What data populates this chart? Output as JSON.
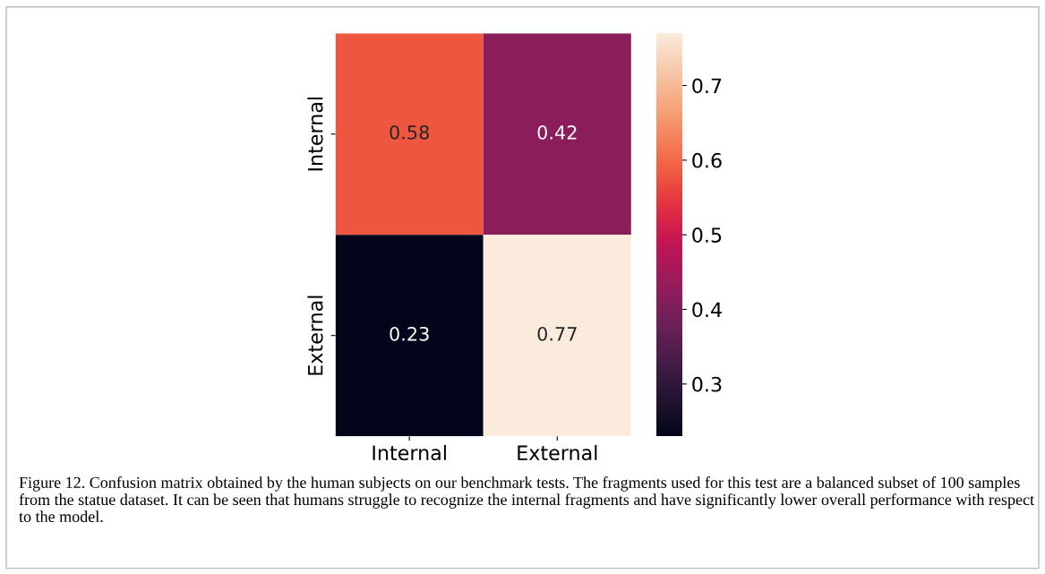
{
  "chart_data": {
    "type": "heatmap",
    "categories": [
      "Internal",
      "External"
    ],
    "y_categories": [
      "Internal",
      "External"
    ],
    "cells": [
      [
        0.58,
        0.42
      ],
      [
        0.23,
        0.77
      ]
    ],
    "clim": [
      0.23,
      0.77
    ],
    "cticks": [
      0.3,
      0.4,
      0.5,
      0.6,
      0.7
    ],
    "data_labels": true,
    "annotations": [
      "Figure 12. Confusion matrix obtained by the human subjects on our benchmark tests. The fragments used for this test are a balanced subset of 100 samples from the statue dataset. It can be seen that humans struggle to recognize the internal fragments and have significantly lower overall performance with respect to the model."
    ]
  }
}
